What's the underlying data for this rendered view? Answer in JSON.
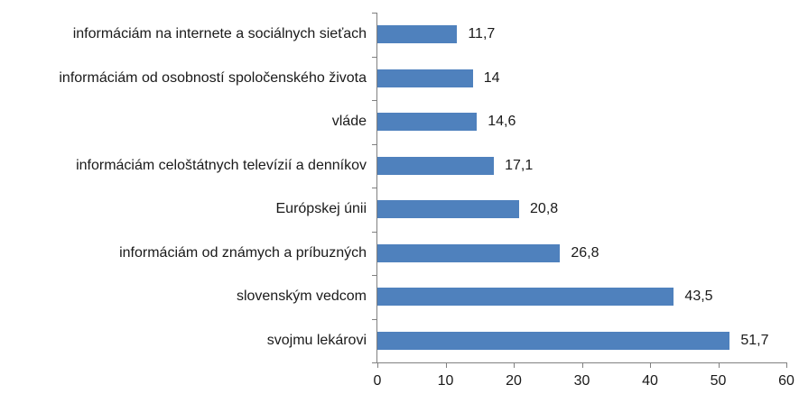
{
  "chart_data": {
    "type": "bar",
    "orientation": "horizontal",
    "title": "",
    "xlabel": "",
    "ylabel": "",
    "categories": [
      "informáciám na internete a sociálnych sieťach",
      "informáciám od osobností spoločenského života",
      "vláde",
      "informáciám celoštátnych televízií a denníkov",
      "Európskej únii",
      "informáciám od známych a príbuzných",
      "slovenským vedcom",
      "svojmu lekárovi"
    ],
    "values": [
      11.7,
      14,
      14.6,
      17.1,
      20.8,
      26.8,
      43.5,
      51.7
    ],
    "value_labels": [
      "11,7",
      "14",
      "14,6",
      "17,1",
      "20,8",
      "26,8",
      "43,5",
      "51,7"
    ],
    "xlim": [
      0,
      60
    ],
    "x_ticks": [
      "0",
      "10",
      "20",
      "30",
      "40",
      "50",
      "60"
    ],
    "grid": false,
    "legend": false,
    "colors": {
      "bar": "#4f81bd",
      "axis": "#808080",
      "text": "#1a1a1a",
      "background": "#ffffff"
    }
  }
}
